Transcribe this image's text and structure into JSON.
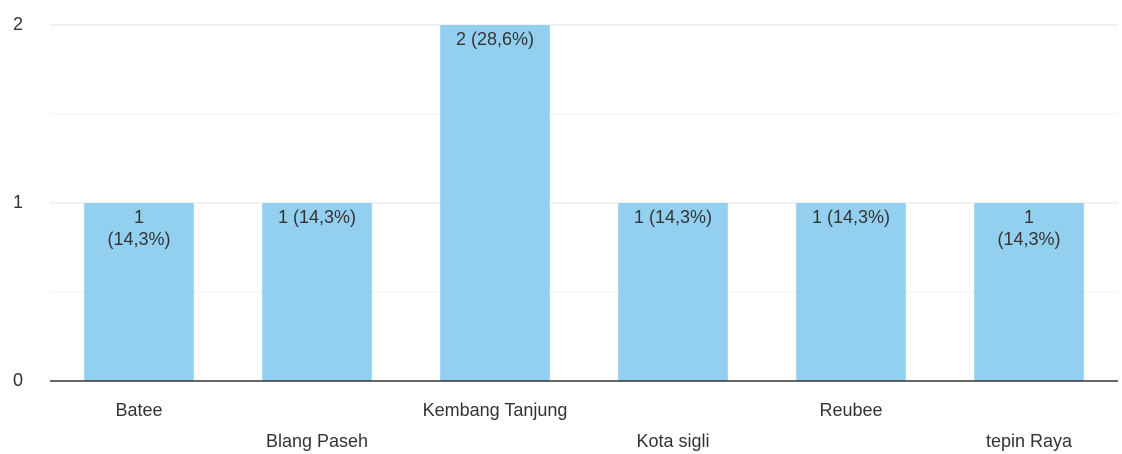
{
  "chart_data": {
    "type": "bar",
    "categories": [
      "Batee",
      "Blang Paseh",
      "Kembang Tanjung",
      "Kota sigli",
      "Reubee",
      "tepin Raya"
    ],
    "values": [
      1,
      1,
      2,
      1,
      1,
      1
    ],
    "value_labels": [
      "1 (14,3%)",
      "1 (14,3%)",
      "2 (28,6%)",
      "1 (14,3%)",
      "1 (14,3%)",
      "1 (14,3%)"
    ],
    "color": "#93d0f0",
    "ylim": [
      0,
      2
    ],
    "yticks": [
      0,
      1,
      2
    ],
    "minor_yticks": [
      0.5,
      1.5
    ],
    "grid": true
  }
}
